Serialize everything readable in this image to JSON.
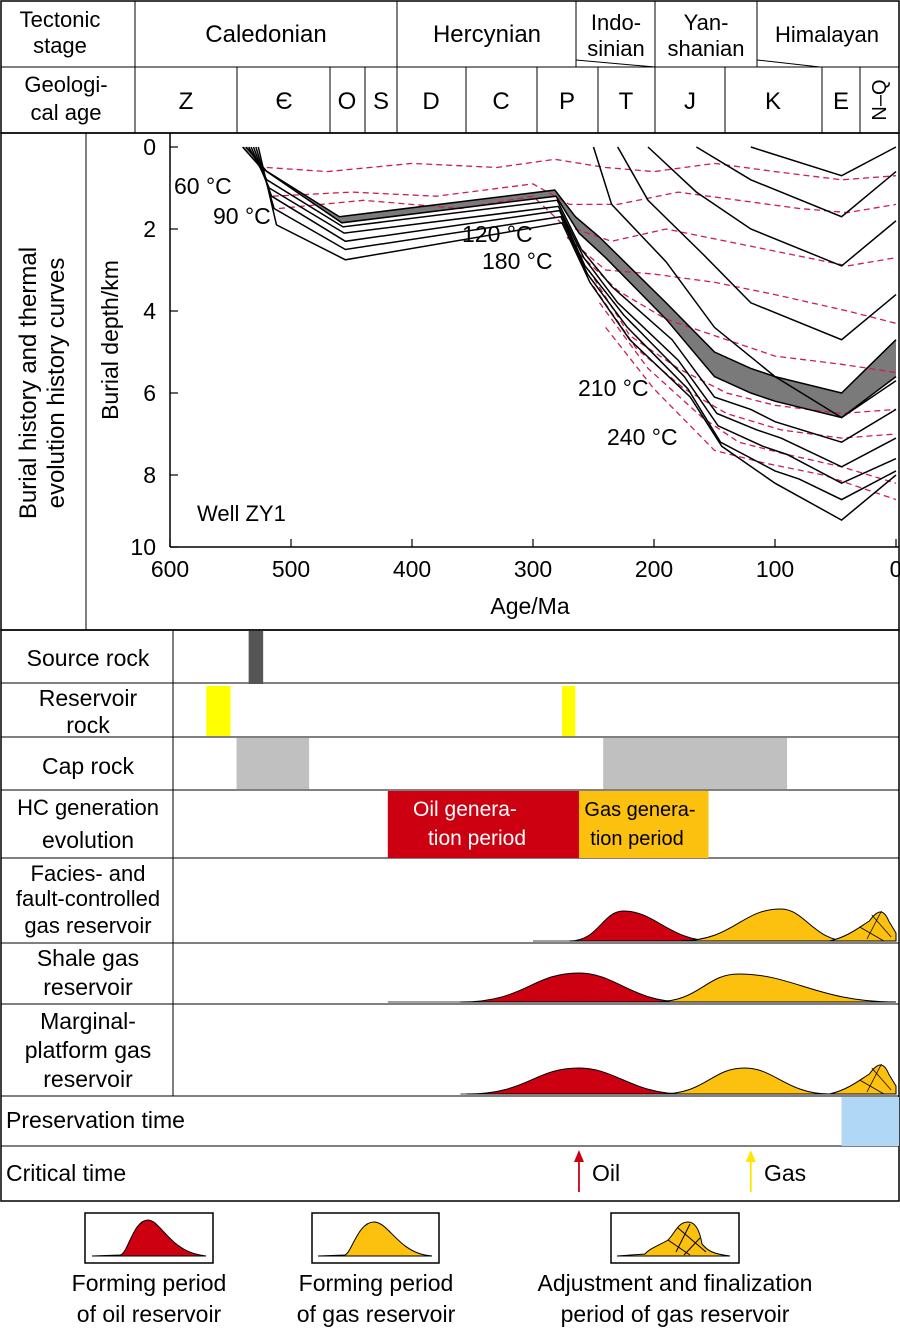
{
  "header": {
    "stage_label_lines": [
      "Tectonic",
      "stage"
    ],
    "age_label_lines": [
      "Geologi-",
      "cal age"
    ],
    "stages": [
      {
        "lines": [
          "Caledonian"
        ]
      },
      {
        "lines": [
          "Hercynian"
        ]
      },
      {
        "lines": [
          "Indo-",
          "sinian"
        ]
      },
      {
        "lines": [
          "Yan-",
          "shanian"
        ]
      },
      {
        "lines": [
          "Himalayan"
        ]
      }
    ],
    "periods": [
      "Z",
      "Є",
      "O",
      "S",
      "D",
      "C",
      "P",
      "T",
      "J",
      "K",
      "E",
      "N–Q"
    ]
  },
  "burial_panel": {
    "side_title_lines": [
      "Burial history and thermal",
      "evolution history curves"
    ],
    "y_axis_label": "Burial depth/km",
    "x_axis_label": "Age/Ma",
    "well_label": "Well ZY1",
    "x_ticks": [
      "600",
      "500",
      "400",
      "300",
      "200",
      "100",
      "0"
    ],
    "y_ticks": [
      "0",
      "2",
      "4",
      "6",
      "8",
      "10"
    ],
    "isotherm_labels": [
      "60 °C",
      "90 °C",
      "120 °C",
      "180 °C",
      "210 °C",
      "240 °C"
    ]
  },
  "chart_data": {
    "type": "line",
    "xlabel": "Age/Ma",
    "ylabel": "Burial depth/km",
    "xlim": [
      600,
      0
    ],
    "ylim": [
      0,
      10
    ],
    "colors": {
      "burial_curve": "#000000",
      "source_band": "#7a7a7a",
      "isotherm": "#cc1f4d"
    },
    "burial_curves": [
      [
        [
          540,
          0
        ],
        [
          525,
          0.5
        ],
        [
          460,
          1.7
        ],
        [
          282,
          1.05
        ],
        [
          265,
          1.7
        ],
        [
          245,
          2.2
        ],
        [
          190,
          3.8
        ],
        [
          150,
          5.0
        ],
        [
          120,
          5.4
        ],
        [
          100,
          5.6
        ],
        [
          45,
          6.0
        ],
        [
          0,
          4.7
        ]
      ],
      [
        [
          537,
          0
        ],
        [
          520,
          0.6
        ],
        [
          458,
          1.85
        ],
        [
          281,
          1.2
        ],
        [
          262,
          2.1
        ],
        [
          240,
          2.7
        ],
        [
          190,
          4.2
        ],
        [
          150,
          5.6
        ],
        [
          120,
          6.0
        ],
        [
          100,
          6.2
        ],
        [
          45,
          6.6
        ],
        [
          0,
          5.6
        ]
      ],
      [
        [
          535,
          0
        ],
        [
          520,
          0.8
        ],
        [
          457,
          1.95
        ],
        [
          280,
          1.3
        ],
        [
          260,
          2.5
        ],
        [
          235,
          3.4
        ],
        [
          185,
          4.7
        ],
        [
          150,
          6.1
        ],
        [
          120,
          6.4
        ],
        [
          100,
          6.7
        ],
        [
          45,
          7.2
        ],
        [
          0,
          6.4
        ]
      ],
      [
        [
          533,
          0
        ],
        [
          518,
          1.0
        ],
        [
          456,
          2.1
        ],
        [
          279,
          1.45
        ],
        [
          258,
          2.7
        ],
        [
          230,
          3.8
        ],
        [
          180,
          5.2
        ],
        [
          148,
          6.5
        ],
        [
          115,
          6.9
        ],
        [
          95,
          7.1
        ],
        [
          45,
          7.8
        ],
        [
          0,
          7.1
        ]
      ],
      [
        [
          531,
          0
        ],
        [
          516,
          1.2
        ],
        [
          455,
          2.3
        ],
        [
          278,
          1.55
        ],
        [
          257,
          2.9
        ],
        [
          225,
          4.1
        ],
        [
          175,
          5.6
        ],
        [
          147,
          6.8
        ],
        [
          110,
          7.3
        ],
        [
          90,
          7.5
        ],
        [
          45,
          8.2
        ],
        [
          0,
          7.6
        ]
      ],
      [
        [
          529,
          0
        ],
        [
          514,
          1.5
        ],
        [
          455,
          2.5
        ],
        [
          277,
          1.7
        ],
        [
          255,
          3.1
        ],
        [
          222,
          4.4
        ],
        [
          172,
          5.9
        ],
        [
          145,
          7.2
        ],
        [
          100,
          7.9
        ],
        [
          80,
          8.1
        ],
        [
          45,
          8.6
        ],
        [
          0,
          7.9
        ]
      ],
      [
        [
          527,
          0
        ],
        [
          512,
          1.9
        ],
        [
          455,
          2.75
        ],
        [
          276,
          1.85
        ],
        [
          253,
          3.3
        ],
        [
          220,
          4.7
        ],
        [
          170,
          6.1
        ],
        [
          144,
          7.3
        ],
        [
          100,
          8.2
        ],
        [
          45,
          9.1
        ],
        [
          0,
          8.0
        ]
      ],
      [
        [
          250,
          0
        ],
        [
          235,
          1.4
        ],
        [
          190,
          2.8
        ],
        [
          150,
          4.4
        ],
        [
          100,
          5.6
        ],
        [
          45,
          6.6
        ],
        [
          0,
          5.7
        ]
      ],
      [
        [
          230,
          0
        ],
        [
          205,
          1.3
        ],
        [
          160,
          2.6
        ],
        [
          120,
          3.8
        ],
        [
          45,
          4.7
        ],
        [
          0,
          3.6
        ]
      ],
      [
        [
          205,
          0
        ],
        [
          165,
          1.1
        ],
        [
          120,
          2.0
        ],
        [
          45,
          2.9
        ],
        [
          0,
          1.8
        ]
      ],
      [
        [
          165,
          0
        ],
        [
          120,
          0.8
        ],
        [
          45,
          1.7
        ],
        [
          0,
          0.6
        ]
      ],
      [
        [
          120,
          0
        ],
        [
          45,
          0.7
        ],
        [
          0,
          0
        ]
      ]
    ],
    "source_band": [
      [
        540,
        0
      ],
      [
        525,
        0.5
      ],
      [
        460,
        1.7
      ],
      [
        282,
        1.05
      ],
      [
        265,
        1.7
      ],
      [
        245,
        2.2
      ],
      [
        190,
        3.8
      ],
      [
        150,
        5.0
      ],
      [
        120,
        5.4
      ],
      [
        100,
        5.6
      ],
      [
        45,
        6.0
      ],
      [
        0,
        4.7
      ]
    ],
    "source_band_bottom": [
      [
        537,
        0
      ],
      [
        520,
        0.6
      ],
      [
        458,
        1.85
      ],
      [
        281,
        1.2
      ],
      [
        262,
        2.1
      ],
      [
        240,
        2.7
      ],
      [
        190,
        4.2
      ],
      [
        150,
        5.6
      ],
      [
        120,
        6.0
      ],
      [
        100,
        6.2
      ],
      [
        45,
        6.6
      ],
      [
        0,
        5.6
      ]
    ],
    "isotherms": [
      [
        [
          520,
          0.5
        ],
        [
          470,
          0.6
        ],
        [
          400,
          0.4
        ],
        [
          330,
          0.5
        ],
        [
          282,
          0.3
        ],
        [
          240,
          0.5
        ],
        [
          200,
          0.6
        ],
        [
          150,
          0.4
        ],
        [
          100,
          0.6
        ],
        [
          45,
          0.8
        ],
        [
          0,
          0.7
        ]
      ],
      [
        [
          515,
          1.2
        ],
        [
          450,
          1.1
        ],
        [
          380,
          1.2
        ],
        [
          300,
          0.9
        ],
        [
          270,
          1.4
        ],
        [
          230,
          1.4
        ],
        [
          180,
          1.1
        ],
        [
          130,
          1.3
        ],
        [
          80,
          1.5
        ],
        [
          40,
          1.6
        ],
        [
          0,
          1.4
        ]
      ],
      [
        [
          510,
          1.5
        ],
        [
          440,
          1.3
        ],
        [
          360,
          1.5
        ],
        [
          300,
          1.2
        ],
        [
          275,
          1.9
        ],
        [
          235,
          2.3
        ],
        [
          190,
          2.0
        ],
        [
          140,
          2.3
        ],
        [
          90,
          2.6
        ],
        [
          40,
          2.9
        ],
        [
          0,
          2.7
        ]
      ],
      [
        [
          272,
          2.2
        ],
        [
          240,
          3.0
        ],
        [
          200,
          3.1
        ],
        [
          150,
          3.3
        ],
        [
          100,
          3.6
        ],
        [
          40,
          4.0
        ],
        [
          0,
          4.3
        ]
      ],
      [
        [
          262,
          2.6
        ],
        [
          230,
          3.5
        ],
        [
          190,
          4.2
        ],
        [
          140,
          4.7
        ],
        [
          100,
          5.1
        ],
        [
          45,
          5.3
        ],
        [
          0,
          5.5
        ]
      ],
      [
        [
          254,
          3.0
        ],
        [
          220,
          4.6
        ],
        [
          180,
          5.4
        ],
        [
          140,
          6.0
        ],
        [
          100,
          6.3
        ],
        [
          45,
          6.5
        ],
        [
          0,
          6.4
        ]
      ],
      [
        [
          250,
          3.4
        ],
        [
          215,
          4.9
        ],
        [
          175,
          5.9
        ],
        [
          140,
          6.5
        ],
        [
          95,
          6.9
        ],
        [
          45,
          7.1
        ],
        [
          0,
          7.0
        ]
      ],
      [
        [
          245,
          3.8
        ],
        [
          205,
          5.4
        ],
        [
          160,
          6.6
        ],
        [
          130,
          7.2
        ],
        [
          90,
          7.5
        ],
        [
          45,
          7.8
        ],
        [
          0,
          8.2
        ]
      ],
      [
        [
          240,
          4.4
        ],
        [
          200,
          5.9
        ],
        [
          150,
          7.4
        ],
        [
          110,
          7.7
        ],
        [
          60,
          8.0
        ],
        [
          0,
          8.6
        ]
      ]
    ],
    "events": {
      "source_rock": [
        [
          535,
          523
        ]
      ],
      "reservoir_rock": [
        [
          570,
          550
        ],
        [
          276,
          265
        ]
      ],
      "cap_rock": [
        [
          545,
          485
        ],
        [
          242,
          90
        ]
      ],
      "oil_generation": [
        420,
        262
      ],
      "gas_generation": [
        262,
        155
      ],
      "preservation": [
        45,
        0
      ],
      "critical_oil": 262,
      "critical_gas": 120
    }
  },
  "events_panel": {
    "rows": [
      {
        "lines": [
          "Source rock"
        ]
      },
      {
        "lines": [
          "Reservoir",
          "rock"
        ]
      },
      {
        "lines": [
          "Cap rock"
        ]
      },
      {
        "lines": [
          "HC generation",
          "evolution"
        ]
      },
      {
        "lines": [
          "Facies- and",
          "fault-controlled",
          "gas reservoir"
        ]
      },
      {
        "lines": [
          "Shale gas",
          "reservoir"
        ]
      },
      {
        "lines": [
          "Marginal-",
          "platform gas",
          "reservoir"
        ]
      },
      {
        "lines": [
          "Preservation time"
        ]
      },
      {
        "lines": [
          "Critical time"
        ]
      }
    ],
    "oil_period_lines": [
      "Oil genera-",
      "tion period"
    ],
    "gas_period_lines": [
      "Gas genera-",
      "tion period"
    ],
    "critical_oil_label": "Oil",
    "critical_gas_label": "Gas",
    "colors": {
      "source": "#555555",
      "reservoir": "#ffff00",
      "cap": "#c0c0c0",
      "oil": "#cc0011",
      "gas": "#fcc00f",
      "preservation": "#b0d8f6"
    }
  },
  "legend": [
    {
      "lines": [
        "Forming period",
        "of oil reservoir"
      ]
    },
    {
      "lines": [
        "Forming period",
        "of gas reservoir"
      ]
    },
    {
      "lines": [
        "Adjustment and finalization",
        "period of gas reservoir"
      ]
    }
  ]
}
